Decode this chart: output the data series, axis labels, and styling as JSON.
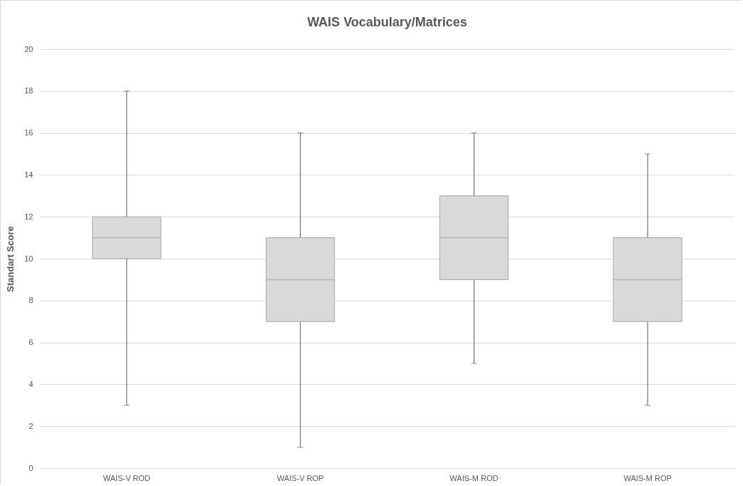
{
  "chart_data": {
    "type": "box",
    "title": "WAIS Vocabulary/Matrices",
    "ylabel": "Standart Score",
    "categories": [
      "WAIS-V ROD",
      "WAIS-V ROP",
      "WAIS-M ROD",
      "WAIS-M ROP"
    ],
    "ylim": [
      0,
      20
    ],
    "yticks": [
      0,
      2,
      4,
      6,
      8,
      10,
      12,
      14,
      16,
      18,
      20
    ],
    "grid": "y",
    "series": [
      {
        "color": "#d9d9d9",
        "boxes": [
          {
            "low": 3,
            "q1": 10,
            "median": 11,
            "q3": 12,
            "high": 18
          },
          {
            "low": 1,
            "q1": 7,
            "median": 9,
            "q3": 11,
            "high": 16
          },
          {
            "low": 5,
            "q1": 9,
            "median": 11,
            "q3": 13,
            "high": 16
          },
          {
            "low": 3,
            "q1": 7,
            "median": 9,
            "q3": 11,
            "high": 15
          }
        ]
      }
    ]
  }
}
